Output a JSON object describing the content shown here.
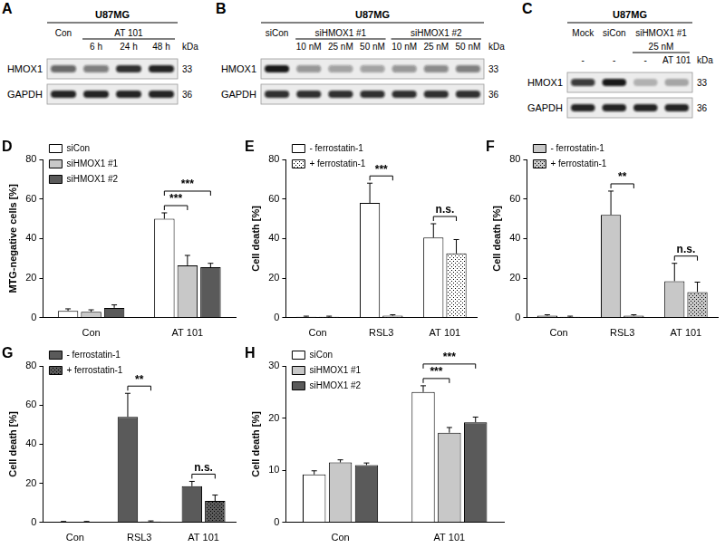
{
  "blots": [
    {
      "panel": "A",
      "title": "U87MG",
      "unit": "kDa",
      "header_rows": [
        [
          {
            "text": "Con",
            "from": 0,
            "to": 0
          },
          {
            "text": "AT 101",
            "from": 1,
            "to": 3,
            "underline": true
          }
        ],
        [
          {
            "text": "6 h",
            "from": 1,
            "to": 1
          },
          {
            "text": "24 h",
            "from": 2,
            "to": 2
          },
          {
            "text": "48 h",
            "from": 3,
            "to": 3
          }
        ]
      ],
      "rows": [
        {
          "name": "HMOX1",
          "kda": 33,
          "intensities": [
            0.6,
            0.5,
            0.85,
            0.9
          ]
        },
        {
          "name": "GAPDH",
          "kda": 36,
          "intensities": [
            0.9,
            0.9,
            0.9,
            0.9
          ]
        }
      ]
    },
    {
      "panel": "B",
      "title": "U87MG",
      "unit": "kDa",
      "header_rows": [
        [
          {
            "text": "siCon",
            "from": 0,
            "to": 0
          },
          {
            "text": "siHMOX1 #1",
            "from": 1,
            "to": 3,
            "underline": true
          },
          {
            "text": "siHMOX1 #2",
            "from": 4,
            "to": 6,
            "underline": true
          }
        ],
        [
          {
            "text": "10 nM",
            "from": 1,
            "to": 1
          },
          {
            "text": "25 nM",
            "from": 2,
            "to": 2
          },
          {
            "text": "50 nM",
            "from": 3,
            "to": 3
          },
          {
            "text": "10 nM",
            "from": 4,
            "to": 4
          },
          {
            "text": "25 nM",
            "from": 5,
            "to": 5
          },
          {
            "text": "50 nM",
            "from": 6,
            "to": 6
          }
        ]
      ],
      "rows": [
        {
          "name": "HMOX1",
          "kda": 33,
          "intensities": [
            0.95,
            0.4,
            0.35,
            0.35,
            0.4,
            0.45,
            0.5
          ]
        },
        {
          "name": "GAPDH",
          "kda": 36,
          "intensities": [
            0.85,
            0.85,
            0.85,
            0.85,
            0.85,
            0.85,
            0.85
          ]
        }
      ]
    },
    {
      "panel": "C",
      "title": "U87MG",
      "unit": "kDa",
      "header_rows": [
        [
          {
            "text": "Mock",
            "from": 0,
            "to": 0
          },
          {
            "text": "siCon",
            "from": 1,
            "to": 1
          },
          {
            "text": "siHMOX1 #1",
            "from": 2,
            "to": 3
          }
        ],
        [
          {
            "text": "25 nM",
            "from": 2,
            "to": 3,
            "underline": true
          }
        ],
        [
          {
            "text": "-",
            "from": 0,
            "to": 0
          },
          {
            "text": "-",
            "from": 1,
            "to": 1
          },
          {
            "text": "-",
            "from": 2,
            "to": 2
          },
          {
            "text": "AT 101",
            "from": 3,
            "to": 3
          }
        ]
      ],
      "rows": [
        {
          "name": "HMOX1",
          "kda": 33,
          "intensities": [
            0.8,
            0.95,
            0.25,
            0.3
          ]
        },
        {
          "name": "GAPDH",
          "kda": 36,
          "intensities": [
            0.9,
            0.9,
            0.9,
            0.9
          ]
        }
      ]
    }
  ],
  "chart_data": [
    {
      "panel": "D",
      "type": "bar",
      "y_label": "MTG-negative cells [%]",
      "categories": [
        "Con",
        "AT 101"
      ],
      "series": [
        {
          "name": "siCon",
          "color": "#ffffff",
          "values": [
            3.5,
            50
          ],
          "errors": [
            1,
            3
          ]
        },
        {
          "name": "siHMOX1 #1",
          "color": "#c8c8c8",
          "values": [
            3,
            26.5
          ],
          "errors": [
            1,
            5
          ]
        },
        {
          "name": "siHMOX1 #2",
          "color": "#5a5a5a",
          "values": [
            5,
            25.5
          ],
          "errors": [
            1.5,
            2
          ]
        }
      ],
      "ylim": [
        0,
        80
      ],
      "yticks": [
        0,
        20,
        40,
        60,
        80
      ],
      "grid": false,
      "legend": "upper left",
      "annotations": [
        {
          "text": "***",
          "category": "AT 101",
          "series": [
            "siCon",
            "siHMOX1 #1"
          ]
        },
        {
          "text": "***",
          "category": "AT 101",
          "series": [
            "siCon",
            "siHMOX1 #2"
          ]
        }
      ]
    },
    {
      "panel": "E",
      "type": "bar",
      "y_label": "Cell death [%]",
      "categories": [
        "Con",
        "RSL3",
        "AT 101"
      ],
      "series": [
        {
          "name": "- ferrostatin-1",
          "color": "#ffffff",
          "values": [
            0.5,
            58,
            40.5
          ],
          "errors": [
            0.3,
            10,
            7
          ]
        },
        {
          "name": "+ ferrostatin-1",
          "color": "#ffffff",
          "line_style": "dotted",
          "values": [
            0.5,
            1,
            32.5
          ],
          "errors": [
            0.3,
            0.5,
            7
          ]
        }
      ],
      "ylim": [
        0,
        80
      ],
      "yticks": [
        0,
        20,
        40,
        60,
        80
      ],
      "grid": false,
      "legend": "upper left",
      "annotations": [
        {
          "text": "***",
          "category": "RSL3",
          "series": [
            "- ferrostatin-1",
            "+ ferrostatin-1"
          ]
        },
        {
          "text": "n.s.",
          "category": "AT 101",
          "series": [
            "- ferrostatin-1",
            "+ ferrostatin-1"
          ]
        }
      ]
    },
    {
      "panel": "F",
      "type": "bar",
      "y_label": "Cell death [%]",
      "categories": [
        "Con",
        "RSL3",
        "AT 101"
      ],
      "series": [
        {
          "name": "- ferrostatin-1",
          "color": "#c8c8c8",
          "values": [
            1,
            52,
            18.5
          ],
          "errors": [
            0.5,
            12,
            9
          ]
        },
        {
          "name": "+ ferrostatin-1",
          "color": "#c8c8c8",
          "line_style": "dotted",
          "values": [
            0.5,
            1,
            13
          ],
          "errors": [
            0.3,
            0.5,
            5
          ]
        }
      ],
      "ylim": [
        0,
        80
      ],
      "yticks": [
        0,
        20,
        40,
        60,
        80
      ],
      "grid": false,
      "legend": "upper left",
      "annotations": [
        {
          "text": "**",
          "category": "RSL3",
          "series": [
            "- ferrostatin-1",
            "+ ferrostatin-1"
          ]
        },
        {
          "text": "n.s.",
          "category": "AT 101",
          "series": [
            "- ferrostatin-1",
            "+ ferrostatin-1"
          ]
        }
      ]
    },
    {
      "panel": "G",
      "type": "bar",
      "y_label": "Cell death [%]",
      "categories": [
        "Con",
        "RSL3",
        "AT 101"
      ],
      "series": [
        {
          "name": "- ferrostatin-1",
          "color": "#5a5a5a",
          "values": [
            0.3,
            54,
            18.5
          ],
          "errors": [
            0.2,
            12,
            2.5
          ]
        },
        {
          "name": "+ ferrostatin-1",
          "color": "#5a5a5a",
          "line_style": "dotted",
          "values": [
            0.3,
            0.5,
            11
          ],
          "errors": [
            0.2,
            0.3,
            3
          ]
        }
      ],
      "ylim": [
        0,
        80
      ],
      "yticks": [
        0,
        20,
        40,
        60,
        80
      ],
      "grid": false,
      "legend": "upper left",
      "annotations": [
        {
          "text": "**",
          "category": "RSL3",
          "series": [
            "- ferrostatin-1",
            "+ ferrostatin-1"
          ]
        },
        {
          "text": "n.s.",
          "category": "AT 101",
          "series": [
            "- ferrostatin-1",
            "+ ferrostatin-1"
          ]
        }
      ]
    },
    {
      "panel": "H",
      "type": "bar",
      "y_label": "Cell death [%]",
      "categories": [
        "Con",
        "AT 101"
      ],
      "series": [
        {
          "name": "siCon",
          "color": "#ffffff",
          "values": [
            9.2,
            25
          ],
          "errors": [
            0.7,
            1.2
          ]
        },
        {
          "name": "siHMOX1 #1",
          "color": "#c8c8c8",
          "values": [
            11.5,
            17.2
          ],
          "errors": [
            0.5,
            1
          ]
        },
        {
          "name": "siHMOX1 #2",
          "color": "#5a5a5a",
          "values": [
            11,
            19.2
          ],
          "errors": [
            0.4,
            1
          ]
        }
      ],
      "ylim": [
        0,
        30
      ],
      "yticks": [
        0,
        10,
        20,
        30
      ],
      "grid": false,
      "legend": "upper left",
      "annotations": [
        {
          "text": "***",
          "category": "AT 101",
          "series": [
            "siCon",
            "siHMOX1 #1"
          ]
        },
        {
          "text": "***",
          "category": "AT 101",
          "series": [
            "siCon",
            "siHMOX1 #2"
          ]
        }
      ]
    }
  ]
}
